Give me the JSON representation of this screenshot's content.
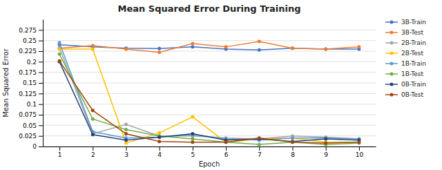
{
  "chart_data": {
    "type": "line",
    "title": "Mean Squared Error During Training",
    "xlabel": "Epoch",
    "ylabel": "Mean Squared Error",
    "x": [
      1,
      2,
      3,
      4,
      5,
      6,
      7,
      8,
      9,
      10
    ],
    "xlim": [
      0.5,
      10.5
    ],
    "xticks": [
      1,
      2,
      3,
      4,
      5,
      6,
      7,
      8,
      9,
      10
    ],
    "ylim": [
      0,
      0.3
    ],
    "yticks": [
      0,
      0.025,
      0.05,
      0.075,
      0.1,
      0.125,
      0.15,
      0.175,
      0.2,
      0.225,
      0.25,
      0.275
    ],
    "grid": true,
    "legend": "right",
    "series": [
      {
        "name": "3B-Train",
        "color": "#4472C4",
        "marker": "circle",
        "values": [
          0.24,
          0.235,
          0.232,
          0.231,
          0.235,
          0.23,
          0.228,
          0.232,
          0.23,
          0.23
        ]
      },
      {
        "name": "3B-Test",
        "color": "#ED7D31",
        "marker": "circle",
        "values": [
          0.232,
          0.238,
          0.23,
          0.222,
          0.243,
          0.235,
          0.248,
          0.232,
          0.23,
          0.235
        ]
      },
      {
        "name": "2B-Train",
        "color": "#A5A5A5",
        "marker": "circle",
        "values": [
          0.233,
          0.03,
          0.052,
          0.025,
          0.025,
          0.02,
          0.018,
          0.025,
          0.022,
          0.018
        ]
      },
      {
        "name": "2B-Test",
        "color": "#FFC000",
        "marker": "circle",
        "values": [
          0.23,
          0.23,
          0.008,
          0.032,
          0.07,
          0.01,
          0.018,
          0.02,
          0.01,
          0.01
        ]
      },
      {
        "name": "1B-Train",
        "color": "#5B9BD5",
        "marker": "circle",
        "values": [
          0.245,
          0.035,
          0.02,
          0.022,
          0.028,
          0.018,
          0.015,
          0.02,
          0.02,
          0.018
        ]
      },
      {
        "name": "1B-Test",
        "color": "#70AD47",
        "marker": "circle",
        "values": [
          0.218,
          0.065,
          0.04,
          0.025,
          0.018,
          0.01,
          0.005,
          0.01,
          0.005,
          0.008
        ]
      },
      {
        "name": "0B-Train",
        "color": "#264478",
        "marker": "circle",
        "values": [
          0.2,
          0.028,
          0.015,
          0.022,
          0.03,
          0.015,
          0.018,
          0.012,
          0.018,
          0.015
        ]
      },
      {
        "name": "0B-Test",
        "color": "#9E480E",
        "marker": "circle",
        "values": [
          0.202,
          0.085,
          0.03,
          0.012,
          0.01,
          0.01,
          0.02,
          0.01,
          0.008,
          0.01
        ]
      }
    ]
  }
}
